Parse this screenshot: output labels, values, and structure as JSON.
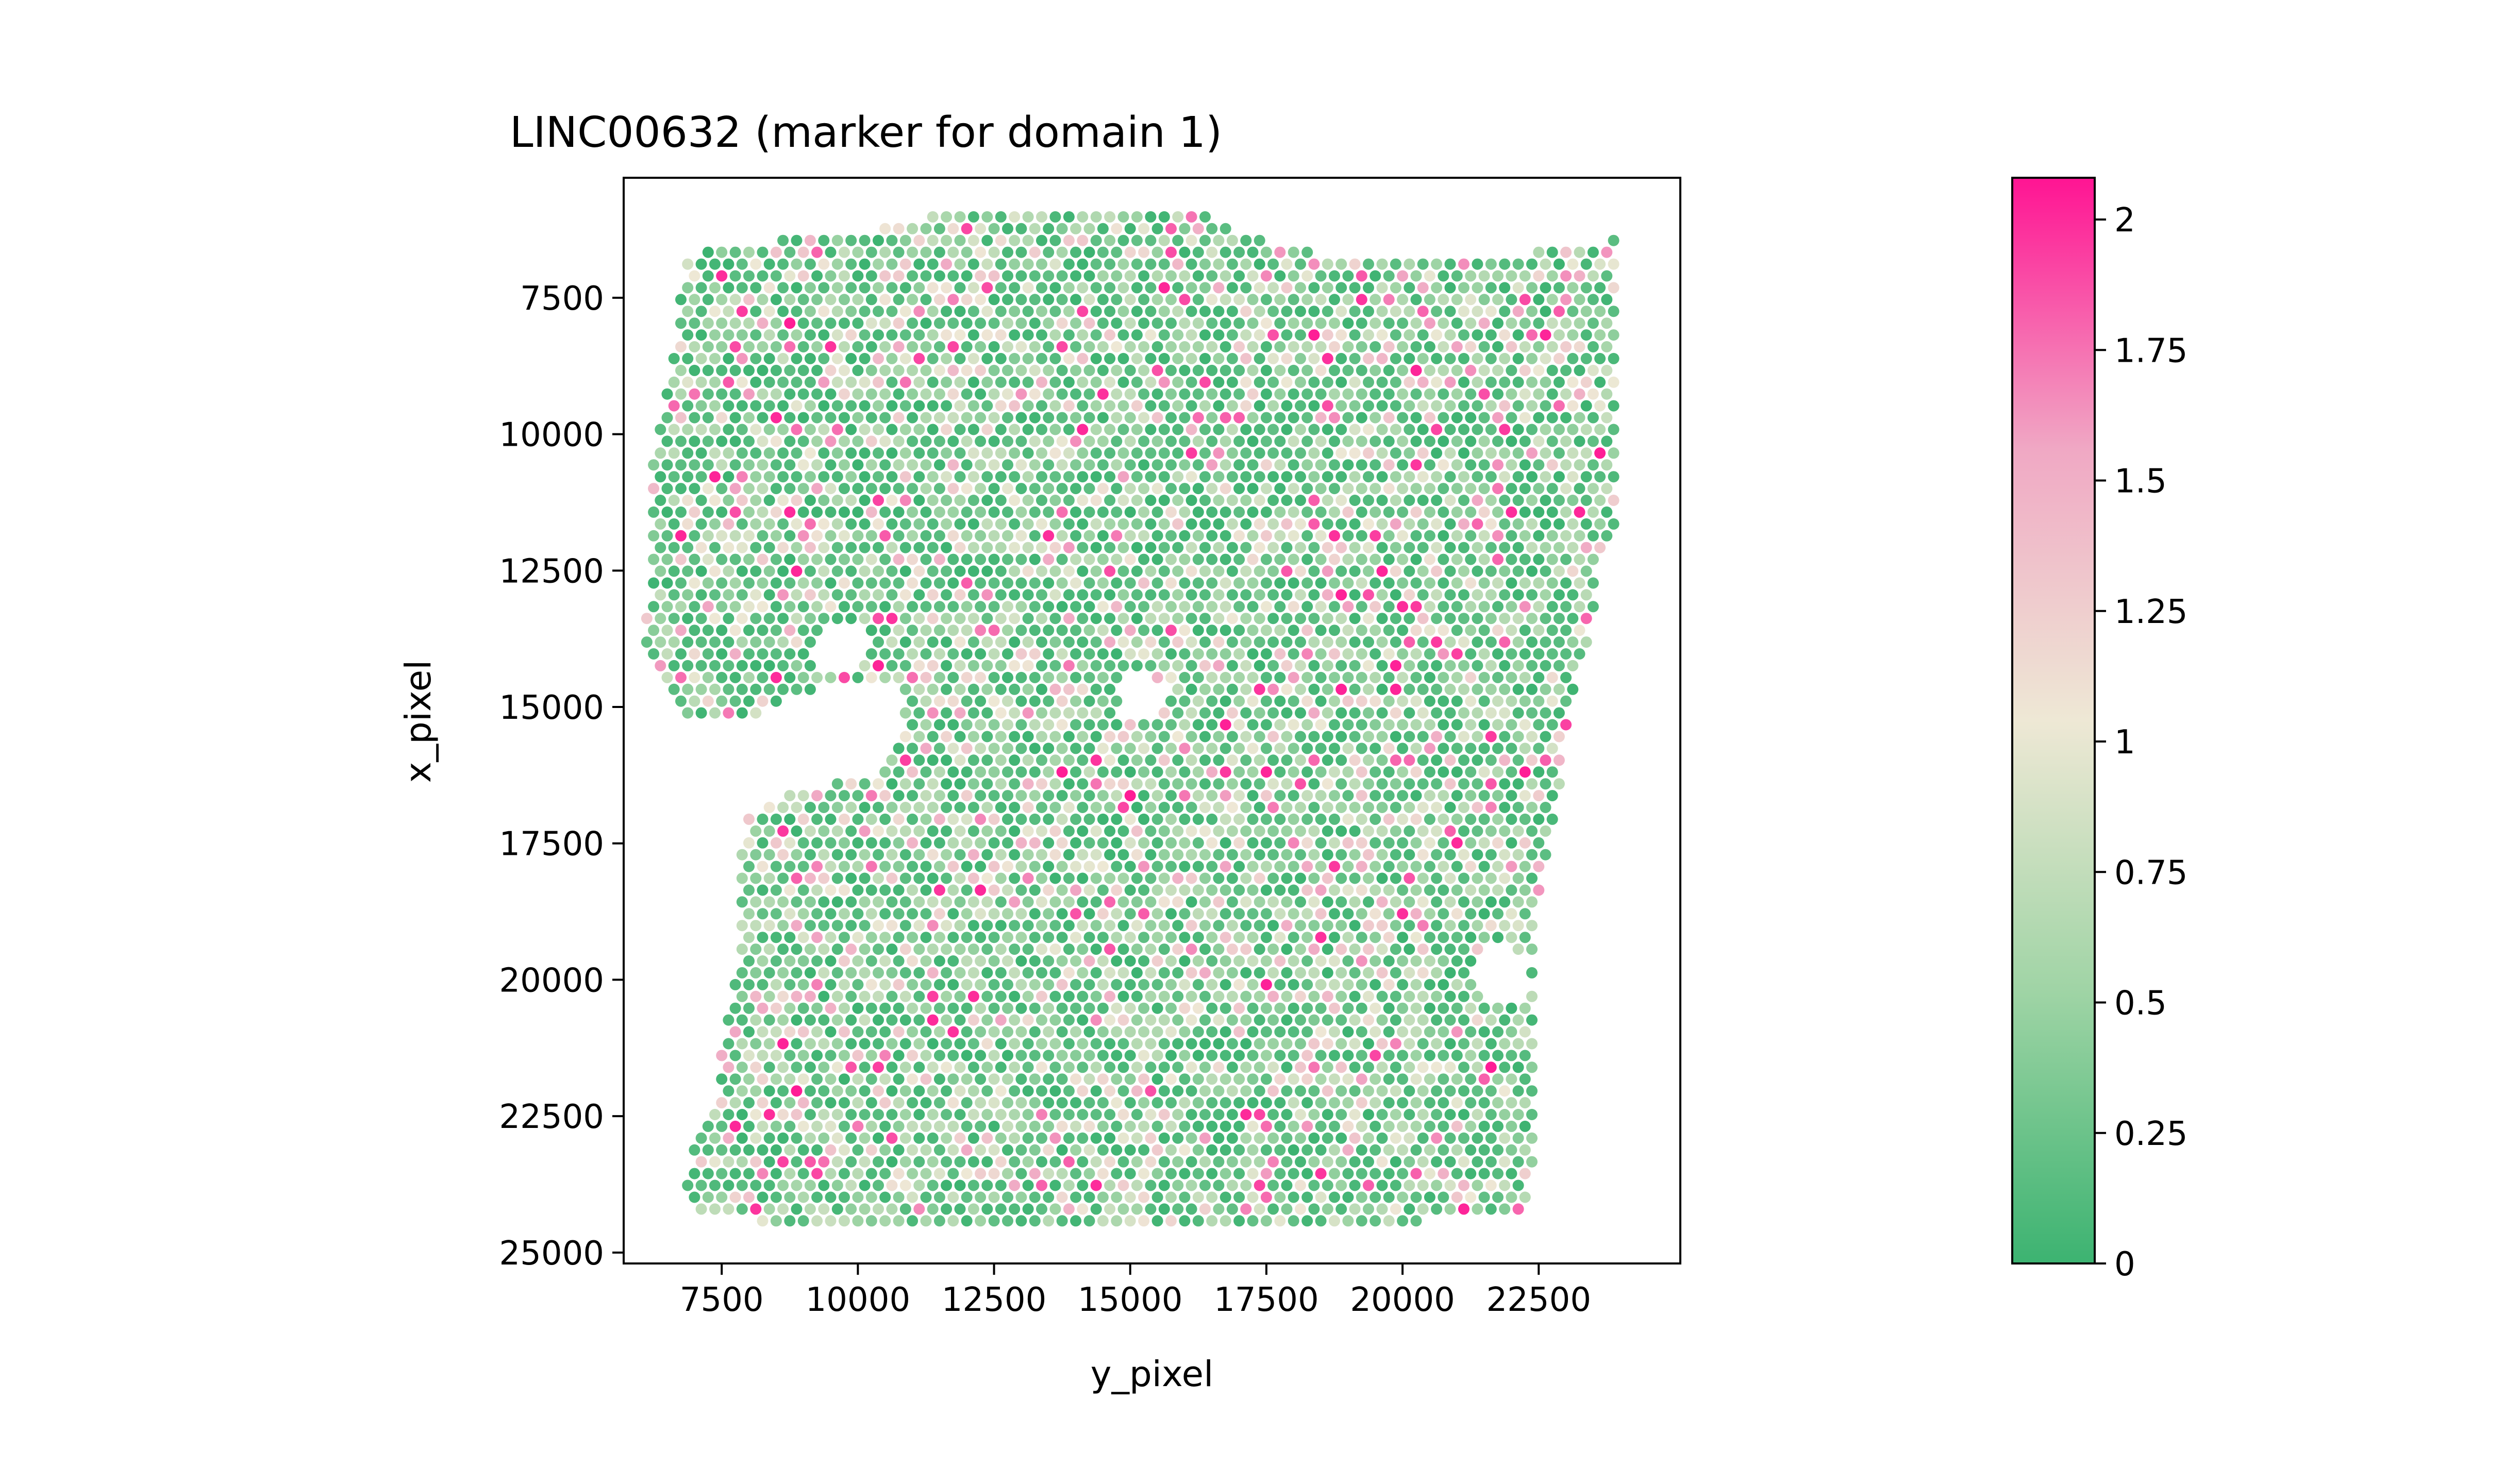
{
  "chart_data": {
    "type": "scatter",
    "title": "LINC00632 (marker for domain 1)",
    "xlabel": "y_pixel",
    "ylabel": "x_pixel",
    "xlim": [
      5700,
      25100
    ],
    "ylim": [
      25200,
      5300
    ],
    "y_inverted": true,
    "grid": false,
    "x_ticks": [
      {
        "value": 7500,
        "label": "7500"
      },
      {
        "value": 10000,
        "label": "10000"
      },
      {
        "value": 12500,
        "label": "12500"
      },
      {
        "value": 15000,
        "label": "15000"
      },
      {
        "value": 17500,
        "label": "17500"
      },
      {
        "value": 20000,
        "label": "20000"
      },
      {
        "value": 22500,
        "label": "22500"
      }
    ],
    "y_ticks": [
      {
        "value": 7500,
        "label": "7500"
      },
      {
        "value": 10000,
        "label": "10000"
      },
      {
        "value": 12500,
        "label": "12500"
      },
      {
        "value": 15000,
        "label": "15000"
      },
      {
        "value": 17500,
        "label": "17500"
      },
      {
        "value": 20000,
        "label": "20000"
      },
      {
        "value": 22500,
        "label": "22500"
      },
      {
        "value": 25000,
        "label": "25000"
      }
    ],
    "colorbar": {
      "min": 0,
      "max": 2.08,
      "ticks": [
        {
          "value": 0,
          "label": "0"
        },
        {
          "value": 0.25,
          "label": "0.25"
        },
        {
          "value": 0.5,
          "label": "0.5"
        },
        {
          "value": 0.75,
          "label": "0.75"
        },
        {
          "value": 1,
          "label": "1"
        },
        {
          "value": 1.25,
          "label": "1.25"
        },
        {
          "value": 1.5,
          "label": "1.5"
        },
        {
          "value": 1.75,
          "label": "1.75"
        },
        {
          "value": 2,
          "label": "2"
        }
      ],
      "colors": [
        "#3cb371",
        "#9fd4a5",
        "#eee8d5",
        "#f0a8c4",
        "#ff1493"
      ]
    },
    "tissue": {
      "spot_spacing": 250,
      "outline": [
        [
          6550,
          8900
        ],
        [
          6800,
          6700
        ],
        [
          8000,
          6500
        ],
        [
          10000,
          6300
        ],
        [
          11500,
          5950
        ],
        [
          13000,
          5900
        ],
        [
          15000,
          5850
        ],
        [
          16200,
          5900
        ],
        [
          17500,
          6500
        ],
        [
          19000,
          6800
        ],
        [
          21500,
          6800
        ],
        [
          23300,
          6550
        ],
        [
          24000,
          6400
        ],
        [
          24000,
          11500
        ],
        [
          23600,
          12300
        ],
        [
          23500,
          13300
        ],
        [
          23000,
          15500
        ],
        [
          22800,
          17000
        ],
        [
          22400,
          19300
        ],
        [
          22400,
          21500
        ],
        [
          22400,
          23300
        ],
        [
          22200,
          24400
        ],
        [
          13000,
          24500
        ],
        [
          7000,
          24400
        ],
        [
          6800,
          23500
        ],
        [
          7300,
          22500
        ],
        [
          7800,
          19500
        ],
        [
          7900,
          17000
        ],
        [
          9000,
          16500
        ],
        [
          10300,
          16200
        ],
        [
          10800,
          15500
        ],
        [
          10800,
          14700
        ],
        [
          9600,
          14500
        ],
        [
          8800,
          14800
        ],
        [
          8300,
          15100
        ],
        [
          7000,
          15300
        ],
        [
          6400,
          14700
        ],
        [
          6100,
          13800
        ],
        [
          6200,
          12000
        ],
        [
          6200,
          11000
        ],
        [
          6300,
          10000
        ]
      ],
      "holes": [
        {
          "cx": 9700,
          "cy": 13900,
          "r": 500
        },
        {
          "cx": 15200,
          "cy": 14800,
          "r": 450
        },
        {
          "cx": 21800,
          "cy": 19900,
          "r": 550
        }
      ]
    }
  }
}
